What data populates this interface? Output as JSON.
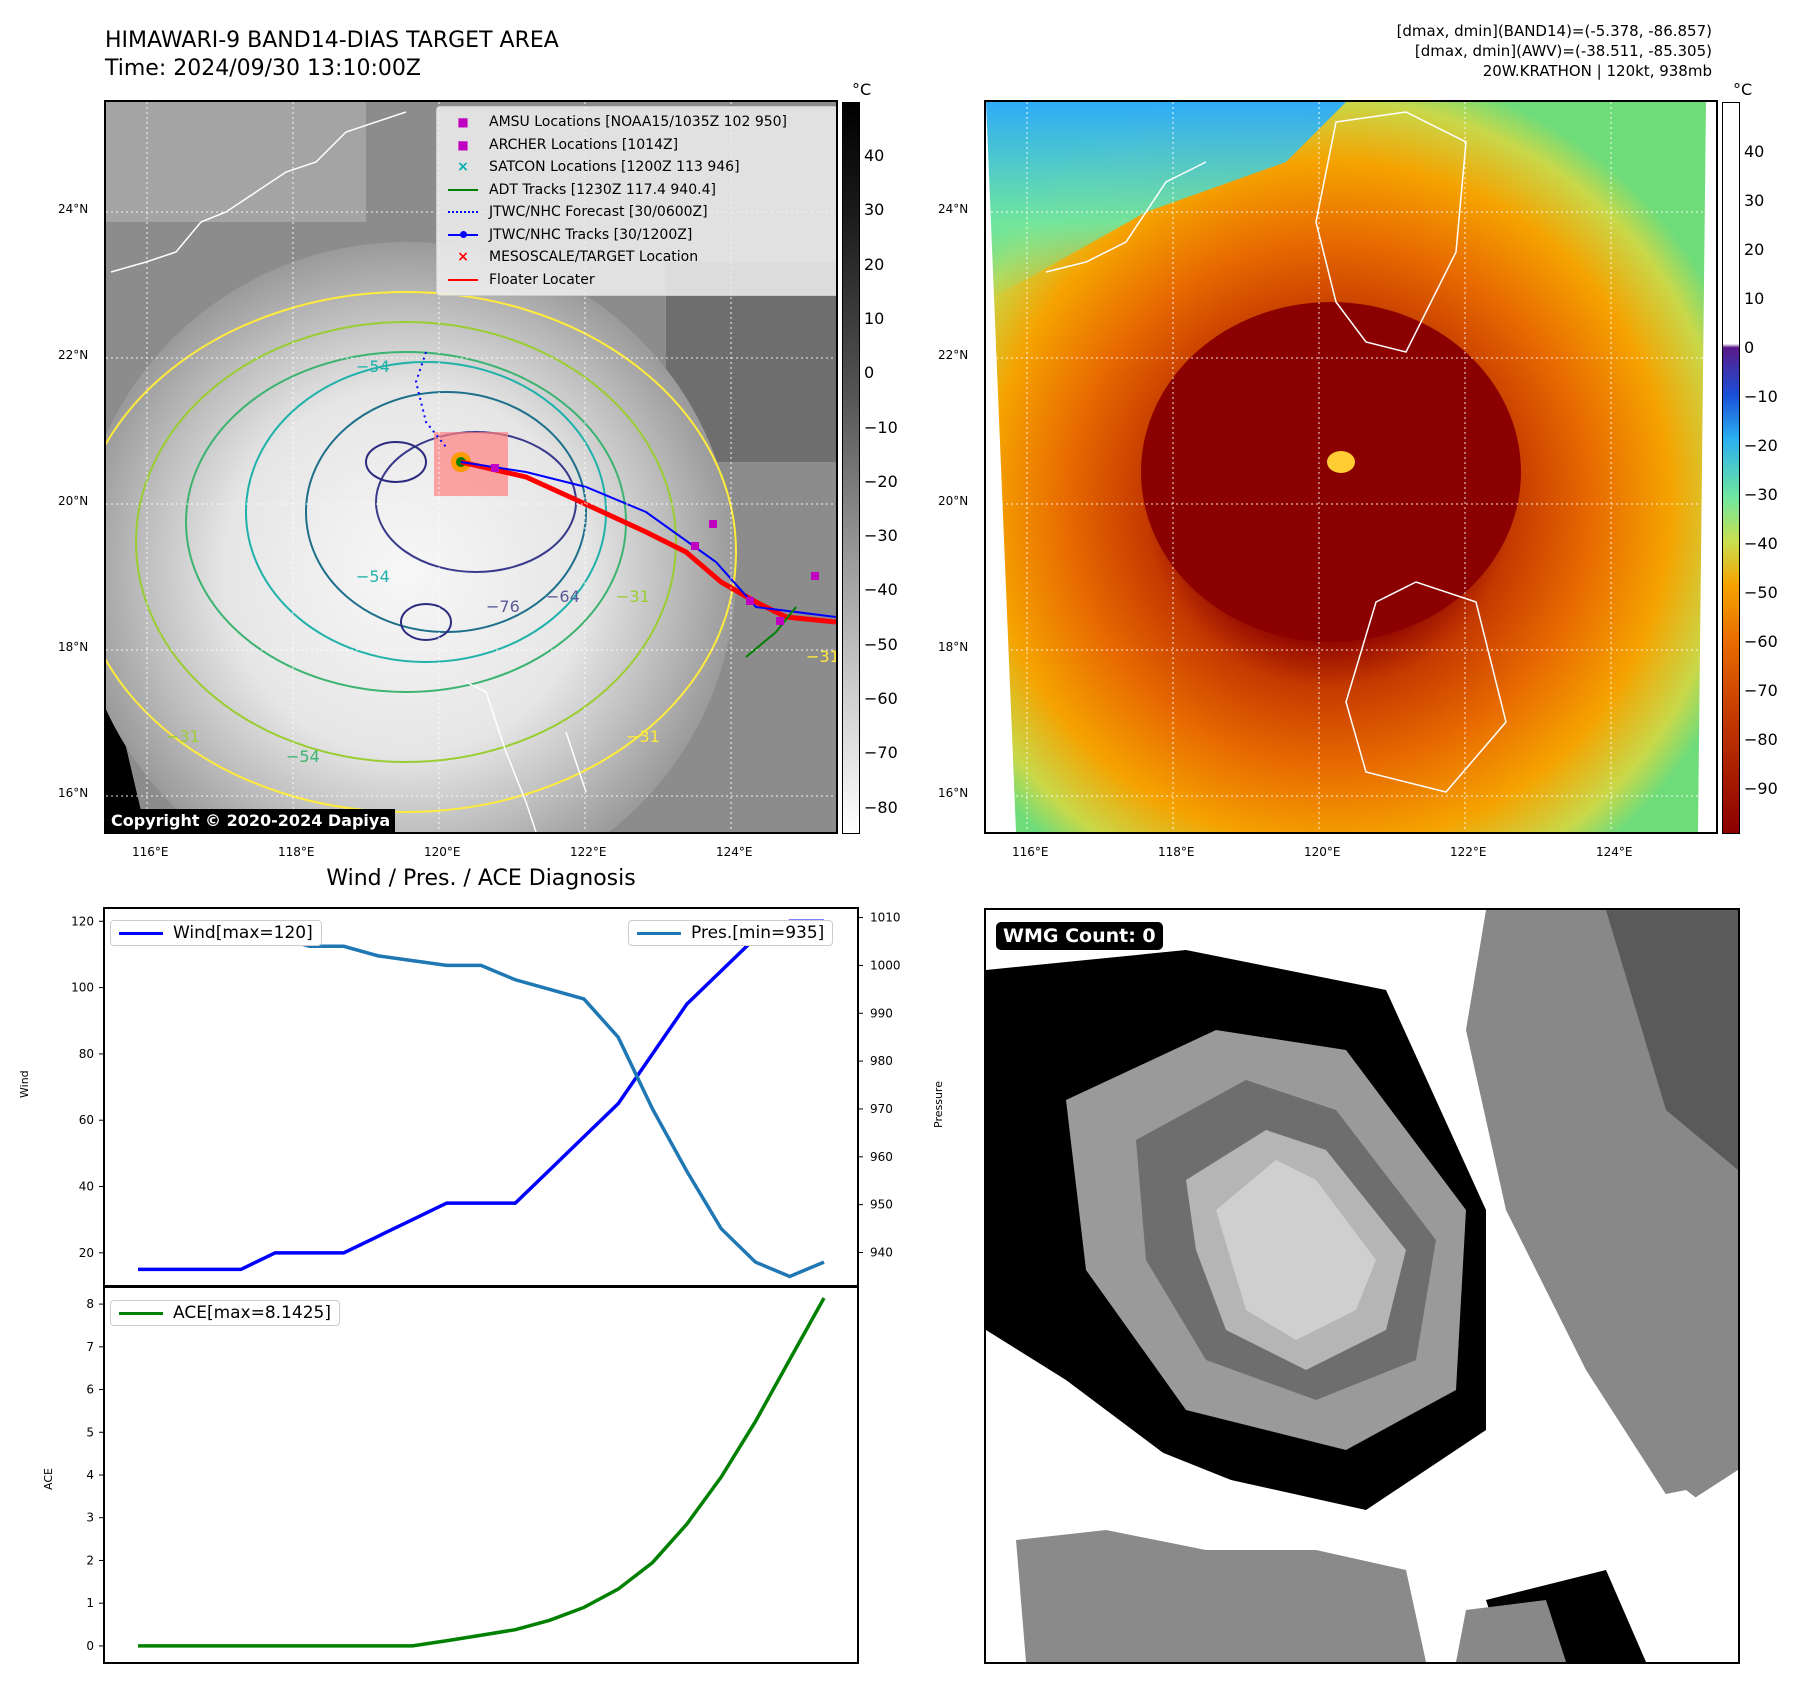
{
  "header": {
    "title_line1": "HIMAWARI-9 BAND14-DIAS TARGET AREA",
    "title_line2": "Time: 2024/09/30 13:10:00Z",
    "info_line1": "[dmax, dmin](BAND14)=(-5.378, -86.857)",
    "info_line2": "[dmax, dmin](AWV)=(-38.511, -85.305)",
    "info_line3": "20W.KRATHON | 120kt, 938mb"
  },
  "map_left": {
    "lat_labels": [
      "24°N",
      "22°N",
      "20°N",
      "18°N",
      "16°N"
    ],
    "lon_labels": [
      "116°E",
      "118°E",
      "120°E",
      "122°E",
      "124°E"
    ],
    "colorbar_unit": "°C",
    "colorbar_ticks": [
      "40",
      "30",
      "20",
      "10",
      "0",
      "−10",
      "−20",
      "−30",
      "−40",
      "−50",
      "−60",
      "−70",
      "−80"
    ],
    "contour_labels": [
      "−76",
      "−64",
      "−54",
      "−54",
      "−31",
      "−31",
      "−54",
      "−31",
      "−31"
    ],
    "legend": [
      {
        "label": "AMSU Locations [NOAA15/1035Z 102 950]",
        "symbol": "■",
        "color": "#c000c0"
      },
      {
        "label": "ARCHER Locations [1014Z]",
        "symbol": "■",
        "color": "#c000c0"
      },
      {
        "label": "SATCON Locations [1200Z 113 946]",
        "symbol": "×",
        "color": "#00b0b0"
      },
      {
        "label": "ADT Tracks [1230Z 117.4 940.4]",
        "symbol": "line",
        "color": "#008000"
      },
      {
        "label": "JTWC/NHC Forecast [30/0600Z]",
        "symbol": "dotted",
        "color": "#0000ff"
      },
      {
        "label": "JTWC/NHC Tracks [30/1200Z]",
        "symbol": "dotline",
        "color": "#0000ff"
      },
      {
        "label": "MESOSCALE/TARGET Location",
        "symbol": "×",
        "color": "#ff0000"
      },
      {
        "label": "Floater Locater",
        "symbol": "line",
        "color": "#ff0000"
      }
    ],
    "copyright": "Copyright © 2020-2024 Dapiya"
  },
  "map_right": {
    "lat_labels": [
      "24°N",
      "22°N",
      "20°N",
      "18°N",
      "16°N"
    ],
    "lon_labels": [
      "116°E",
      "118°E",
      "120°E",
      "122°E",
      "124°E"
    ],
    "colorbar_unit": "°C",
    "colorbar_ticks": [
      "40",
      "30",
      "20",
      "10",
      "0",
      "−10",
      "−20",
      "−30",
      "−40",
      "−50",
      "−60",
      "−70",
      "−80",
      "−90"
    ]
  },
  "diagnosis": {
    "title": "Wind / Pres. / ACE Diagnosis",
    "wind_ylabel": "Wind",
    "pres_ylabel": "Pressure",
    "ace_ylabel": "ACE",
    "wind_legend": "Wind[max=120]",
    "pres_legend": "Pres.[min=935]",
    "ace_legend": "ACE[max=8.1425]",
    "wind_color": "#0000ff",
    "pres_color": "#1f77b4",
    "ace_color": "#008000"
  },
  "wmg": {
    "label": "WMG Count: 0"
  },
  "chart_data": [
    {
      "type": "line",
      "title": "Wind / Pres. / ACE Diagnosis",
      "ylabel": "Wind",
      "ylim": [
        10,
        124
      ],
      "y_ticks": [
        20,
        40,
        60,
        80,
        100,
        120
      ],
      "series": [
        {
          "name": "Wind[max=120]",
          "values": [
            15,
            15,
            15,
            15,
            20,
            20,
            20,
            25,
            30,
            35,
            35,
            35,
            45,
            55,
            65,
            80,
            95,
            105,
            115,
            120,
            120
          ]
        }
      ],
      "secondary_axis": {
        "ylabel": "Pressure",
        "ylim": [
          933,
          1012
        ],
        "y_ticks": [
          940,
          950,
          960,
          970,
          980,
          990,
          1000,
          1010
        ],
        "series": [
          {
            "name": "Pres.[min=935]",
            "values": [
              1008,
              1008,
              1008,
              1006,
              1006,
              1004,
              1004,
              1002,
              1001,
              1000,
              1000,
              997,
              995,
              993,
              985,
              970,
              957,
              945,
              938,
              935,
              938
            ]
          }
        ]
      }
    },
    {
      "type": "line",
      "ylabel": "ACE",
      "ylim": [
        -0.4,
        8.4
      ],
      "y_ticks": [
        0,
        1,
        2,
        3,
        4,
        5,
        6,
        7,
        8
      ],
      "series": [
        {
          "name": "ACE[max=8.1425]",
          "values": [
            0,
            0,
            0,
            0,
            0,
            0,
            0,
            0,
            0,
            0.12,
            0.25,
            0.38,
            0.6,
            0.9,
            1.33,
            1.95,
            2.85,
            3.95,
            5.25,
            6.7,
            8.1425
          ]
        }
      ]
    }
  ]
}
